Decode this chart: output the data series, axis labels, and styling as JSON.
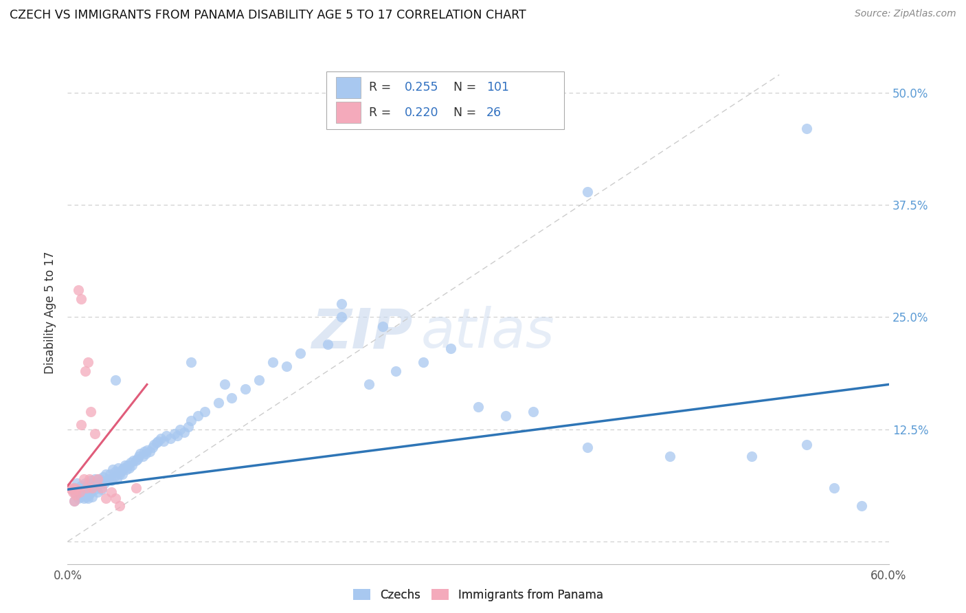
{
  "title": "CZECH VS IMMIGRANTS FROM PANAMA DISABILITY AGE 5 TO 17 CORRELATION CHART",
  "source": "Source: ZipAtlas.com",
  "ylabel": "Disability Age 5 to 17",
  "xlim": [
    0.0,
    0.6
  ],
  "ylim": [
    -0.025,
    0.535
  ],
  "ytick_positions": [
    0.0,
    0.125,
    0.25,
    0.375,
    0.5
  ],
  "ytick_labels": [
    "",
    "12.5%",
    "25.0%",
    "37.5%",
    "50.0%"
  ],
  "czech_color": "#A8C8F0",
  "panama_color": "#F4AABB",
  "czech_line_color": "#2E75B6",
  "panama_line_color": "#E05C7A",
  "diag_line_color": "#CCCCCC",
  "watermark_zip": "ZIP",
  "watermark_atlas": "atlas",
  "legend_R_czech": "0.255",
  "legend_N_czech": "101",
  "legend_R_panama": "0.220",
  "legend_N_panama": "26",
  "text_color_label": "#555555",
  "text_color_value": "#3070C0",
  "czech_scatter_x": [
    0.005,
    0.005,
    0.005,
    0.007,
    0.008,
    0.008,
    0.009,
    0.01,
    0.01,
    0.01,
    0.011,
    0.012,
    0.012,
    0.013,
    0.013,
    0.014,
    0.014,
    0.015,
    0.015,
    0.015,
    0.016,
    0.016,
    0.017,
    0.017,
    0.018,
    0.018,
    0.019,
    0.02,
    0.02,
    0.021,
    0.022,
    0.022,
    0.023,
    0.024,
    0.025,
    0.025,
    0.026,
    0.027,
    0.028,
    0.029,
    0.03,
    0.031,
    0.032,
    0.033,
    0.034,
    0.035,
    0.036,
    0.037,
    0.038,
    0.039,
    0.04,
    0.04,
    0.041,
    0.042,
    0.043,
    0.044,
    0.045,
    0.046,
    0.047,
    0.048,
    0.05,
    0.051,
    0.052,
    0.053,
    0.055,
    0.056,
    0.057,
    0.058,
    0.06,
    0.062,
    0.063,
    0.065,
    0.066,
    0.068,
    0.07,
    0.072,
    0.075,
    0.078,
    0.08,
    0.082,
    0.085,
    0.088,
    0.09,
    0.095,
    0.1,
    0.11,
    0.12,
    0.13,
    0.14,
    0.15,
    0.17,
    0.19,
    0.2,
    0.22,
    0.24,
    0.26,
    0.28,
    0.3,
    0.34,
    0.38,
    0.54
  ],
  "czech_scatter_y": [
    0.06,
    0.055,
    0.045,
    0.065,
    0.058,
    0.048,
    0.052,
    0.062,
    0.055,
    0.05,
    0.06,
    0.058,
    0.048,
    0.065,
    0.052,
    0.06,
    0.05,
    0.065,
    0.055,
    0.048,
    0.063,
    0.053,
    0.068,
    0.055,
    0.06,
    0.05,
    0.065,
    0.07,
    0.058,
    0.062,
    0.065,
    0.055,
    0.07,
    0.065,
    0.068,
    0.058,
    0.072,
    0.065,
    0.075,
    0.068,
    0.07,
    0.075,
    0.068,
    0.08,
    0.072,
    0.078,
    0.07,
    0.082,
    0.075,
    0.078,
    0.08,
    0.075,
    0.082,
    0.085,
    0.08,
    0.085,
    0.082,
    0.088,
    0.085,
    0.09,
    0.09,
    0.092,
    0.095,
    0.098,
    0.095,
    0.1,
    0.098,
    0.102,
    0.1,
    0.105,
    0.108,
    0.11,
    0.112,
    0.115,
    0.112,
    0.118,
    0.115,
    0.12,
    0.118,
    0.125,
    0.122,
    0.128,
    0.135,
    0.14,
    0.145,
    0.155,
    0.16,
    0.17,
    0.18,
    0.2,
    0.21,
    0.22,
    0.25,
    0.175,
    0.19,
    0.2,
    0.215,
    0.15,
    0.145,
    0.39,
    0.46
  ],
  "czech_scatter_x2": [
    0.035,
    0.09,
    0.115,
    0.16,
    0.2,
    0.23,
    0.32,
    0.38,
    0.44,
    0.5,
    0.54,
    0.56,
    0.58
  ],
  "czech_scatter_y2": [
    0.18,
    0.2,
    0.175,
    0.195,
    0.265,
    0.24,
    0.14,
    0.105,
    0.095,
    0.095,
    0.108,
    0.06,
    0.04
  ],
  "panama_scatter_x": [
    0.002,
    0.003,
    0.004,
    0.005,
    0.005,
    0.006,
    0.007,
    0.008,
    0.009,
    0.01,
    0.01,
    0.012,
    0.013,
    0.014,
    0.015,
    0.016,
    0.017,
    0.018,
    0.02,
    0.022,
    0.025,
    0.028,
    0.032,
    0.035,
    0.038,
    0.05
  ],
  "panama_scatter_y": [
    0.06,
    0.058,
    0.055,
    0.06,
    0.045,
    0.052,
    0.058,
    0.28,
    0.055,
    0.27,
    0.13,
    0.07,
    0.19,
    0.06,
    0.2,
    0.07,
    0.145,
    0.06,
    0.12,
    0.07,
    0.06,
    0.048,
    0.055,
    0.048,
    0.04,
    0.06
  ],
  "czech_trend_x": [
    0.0,
    0.6
  ],
  "czech_trend_y": [
    0.058,
    0.175
  ],
  "panama_trend_x": [
    0.0,
    0.058
  ],
  "panama_trend_y": [
    0.062,
    0.175
  ]
}
